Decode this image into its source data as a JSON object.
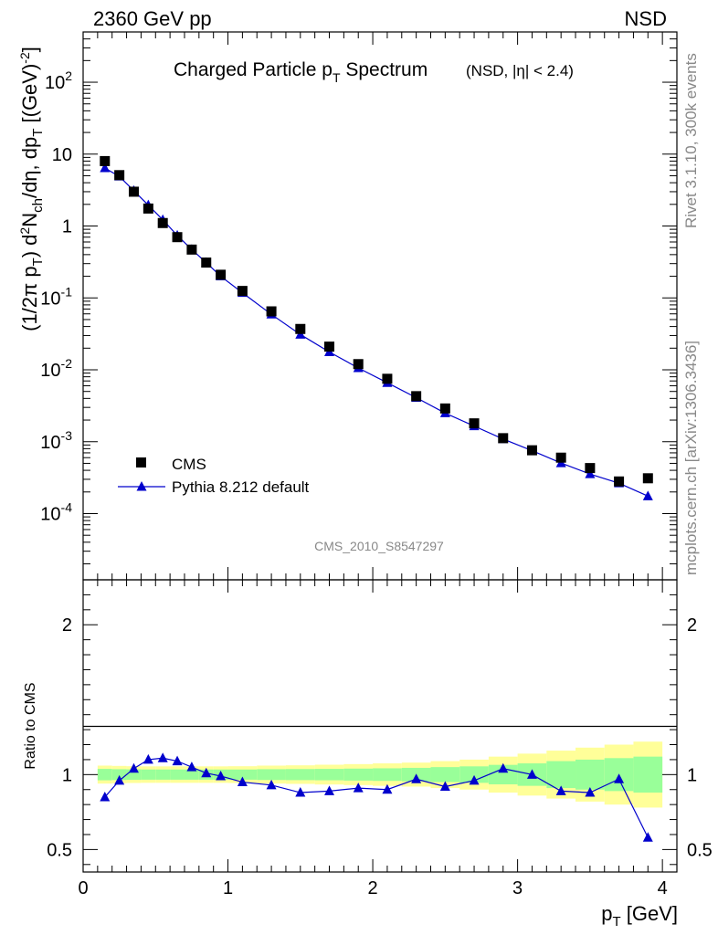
{
  "header": {
    "left": "2360 GeV pp",
    "right": "NSD"
  },
  "side_text": {
    "rivet": "Rivet 3.1.10,  300k events",
    "mcplots": "mcplots.cern.ch [arXiv:1306.3436]"
  },
  "colors": {
    "data": "#000000",
    "mc": "#0000cc",
    "band_inner": "#99ff99",
    "band_outer": "#ffff99",
    "frame": "#000000",
    "watermark": "#888888"
  },
  "chart_data": [
    {
      "type": "scatter",
      "panel": "main",
      "title": "Charged Particle p_T Spectrum",
      "title_suffix": "(NSD, |η| < 2.4)",
      "xlabel": "",
      "ylabel": "(1/2π p_T) d²N_ch/dη, dp_T [(GeV)^{-2}]",
      "watermark": "CMS_2010_S8547297",
      "yscale": "log",
      "xlim": [
        0,
        4.1
      ],
      "ylim": [
        1.2e-05,
        500
      ],
      "grid": false,
      "legend_position": "bottom-left",
      "x": [
        0.15,
        0.25,
        0.35,
        0.45,
        0.55,
        0.65,
        0.75,
        0.85,
        0.95,
        1.1,
        1.3,
        1.5,
        1.7,
        1.9,
        2.1,
        2.3,
        2.5,
        2.7,
        2.9,
        3.1,
        3.3,
        3.5,
        3.7,
        3.9
      ],
      "series": [
        {
          "name": "CMS",
          "marker": "square",
          "values": [
            8.0,
            5.1,
            3.0,
            1.75,
            1.1,
            0.7,
            0.47,
            0.31,
            0.21,
            0.125,
            0.065,
            0.037,
            0.021,
            0.012,
            0.0075,
            0.0043,
            0.0029,
            0.0018,
            0.00112,
            0.00076,
            0.0006,
            0.00043,
            0.00028,
            0.00031
          ]
        },
        {
          "name": "Pythia 8.212 default",
          "marker": "triangle",
          "values": [
            6.4,
            4.9,
            3.1,
            1.95,
            1.22,
            0.74,
            0.47,
            0.31,
            0.2,
            0.118,
            0.059,
            0.031,
            0.0177,
            0.0106,
            0.0066,
            0.0041,
            0.0025,
            0.00165,
            0.00109,
            0.00075,
            0.000505,
            0.000355,
            0.000265,
            0.000175
          ]
        }
      ],
      "yticks": [
        "10^{-4}",
        "10^{-3}",
        "10^{-2}",
        "10^{-1}",
        "1",
        "10",
        "10^{2}"
      ]
    },
    {
      "type": "line",
      "panel": "ratio",
      "xlabel": "p_T [GeV]",
      "ylabel": "Ratio to CMS",
      "xlim": [
        0,
        4.1
      ],
      "ylim": [
        0.35,
        2.3
      ],
      "grid": false,
      "xticks": [
        "0",
        "1",
        "2",
        "3",
        "4"
      ],
      "yticks": [
        "0.5",
        "1",
        "2"
      ],
      "x": [
        0.15,
        0.25,
        0.35,
        0.45,
        0.55,
        0.65,
        0.75,
        0.85,
        0.95,
        1.1,
        1.3,
        1.5,
        1.7,
        1.9,
        2.1,
        2.3,
        2.5,
        2.7,
        2.9,
        3.1,
        3.3,
        3.5,
        3.7,
        3.9
      ],
      "series": [
        {
          "name": "Pythia 8.212 default",
          "values": [
            0.85,
            0.96,
            1.04,
            1.1,
            1.11,
            1.09,
            1.05,
            1.01,
            0.99,
            0.95,
            0.93,
            0.88,
            0.89,
            0.91,
            0.9,
            0.97,
            0.92,
            0.96,
            1.04,
            1.0,
            0.89,
            0.88,
            0.97,
            0.58
          ]
        }
      ],
      "uncertainty_bands": {
        "x_edges": [
          0.1,
          0.2,
          0.3,
          0.4,
          0.5,
          0.6,
          0.7,
          0.8,
          0.9,
          1.0,
          1.2,
          1.4,
          1.6,
          1.8,
          2.0,
          2.2,
          2.4,
          2.6,
          2.8,
          3.0,
          3.2,
          3.4,
          3.6,
          3.8,
          4.0
        ],
        "inner_half_width": [
          0.038,
          0.036,
          0.035,
          0.034,
          0.034,
          0.034,
          0.034,
          0.034,
          0.034,
          0.034,
          0.036,
          0.037,
          0.038,
          0.04,
          0.042,
          0.045,
          0.05,
          0.055,
          0.065,
          0.075,
          0.09,
          0.1,
          0.11,
          0.12
        ],
        "outer_half_width": [
          0.06,
          0.058,
          0.056,
          0.055,
          0.055,
          0.055,
          0.055,
          0.055,
          0.055,
          0.056,
          0.06,
          0.062,
          0.066,
          0.07,
          0.075,
          0.08,
          0.09,
          0.1,
          0.12,
          0.14,
          0.16,
          0.18,
          0.2,
          0.22
        ]
      }
    }
  ]
}
